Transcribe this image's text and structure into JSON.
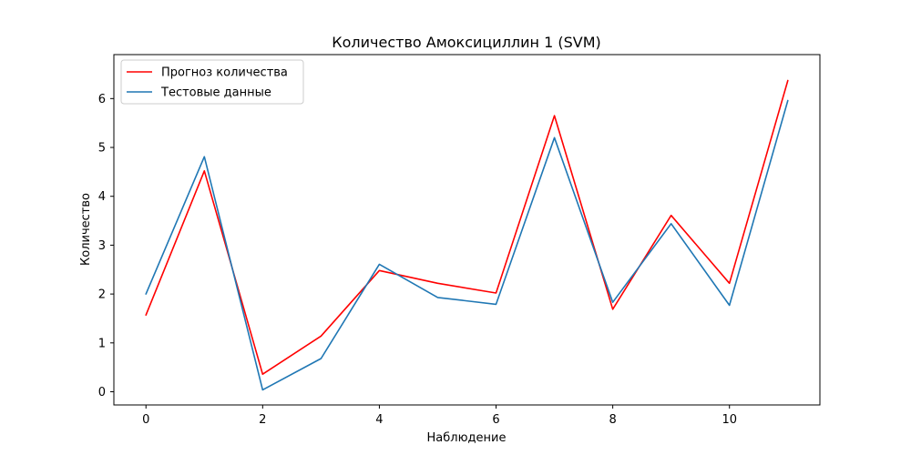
{
  "chart_data": {
    "type": "line",
    "title": "Количество Амоксициллин 1 (SVM)",
    "xlabel": "Наблюдение",
    "ylabel": "Количество",
    "x": [
      0,
      1,
      2,
      3,
      4,
      5,
      6,
      7,
      8,
      9,
      10,
      11
    ],
    "xlim": [
      -0.55,
      11.55
    ],
    "ylim": [
      -0.27,
      6.9
    ],
    "xticks": [
      0,
      2,
      4,
      6,
      8,
      10
    ],
    "yticks": [
      0,
      1,
      2,
      3,
      4,
      5,
      6
    ],
    "grid": false,
    "legend_position": "top-left",
    "series": [
      {
        "name": "Прогноз количества",
        "color": "#ff0000",
        "values": [
          1.57,
          4.52,
          0.36,
          1.14,
          2.48,
          2.22,
          2.02,
          5.65,
          1.69,
          3.61,
          2.22,
          6.37
        ]
      },
      {
        "name": "Тестовые данные",
        "color": "#1f77b4",
        "values": [
          2.0,
          4.81,
          0.04,
          0.68,
          2.61,
          1.93,
          1.79,
          5.2,
          1.83,
          3.44,
          1.77,
          5.96
        ]
      }
    ]
  }
}
